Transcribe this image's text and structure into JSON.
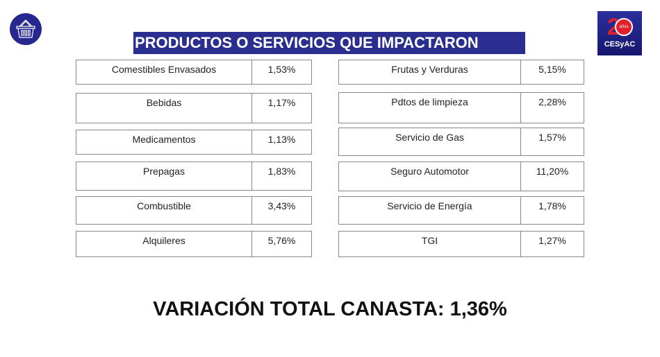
{
  "title": "PRODUCTOS O SERVICIOS QUE IMPACTARON",
  "logo": {
    "number": "2",
    "badge": "años",
    "name": "CESyAC"
  },
  "left": [
    {
      "label": "Comestibles Envasados",
      "value": "1,53%"
    },
    {
      "label": "Bebidas",
      "value": "1,17%"
    },
    {
      "label": "Medicamentos",
      "value": "1,13%"
    },
    {
      "label": "Prepagas",
      "value": "1,83%"
    },
    {
      "label": "Combustible",
      "value": "3,43%"
    },
    {
      "label": "Alquileres",
      "value": "5,76%"
    }
  ],
  "right": [
    {
      "label": "Frutas y Verduras",
      "value": "5,15%"
    },
    {
      "label": "Pdtos de limpieza",
      "value": "2,28%"
    },
    {
      "label": "Servicio de Gas",
      "value": "1,57%"
    },
    {
      "label": "Seguro Automotor",
      "value": "11,20%"
    },
    {
      "label": "Servicio de Energía",
      "value": "1,78%"
    },
    {
      "label": "TGI",
      "value": "1,27%"
    }
  ],
  "total": "VARIACIÓN TOTAL CANASTA: 1,36%"
}
